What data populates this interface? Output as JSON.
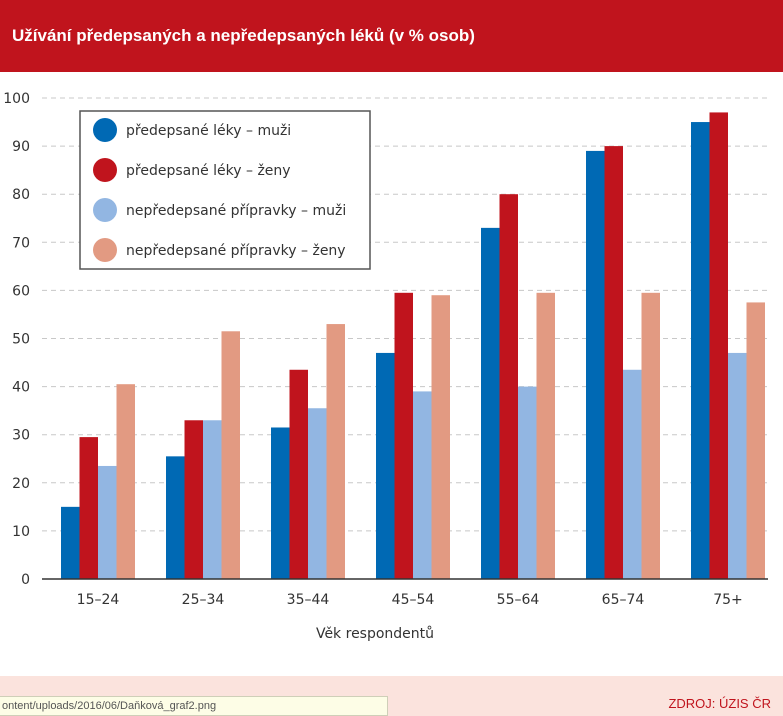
{
  "header": {
    "title": "Užívání předepsaných a nepředepsaných léků (v % osob)"
  },
  "footer": {
    "source": "ZDROJ: ÚZIS ČR"
  },
  "statusbar": {
    "url": "ontent/uploads/2016/06/Daňková_graf2.png"
  },
  "chart_data": {
    "type": "bar",
    "categories": [
      "15–24",
      "25–34",
      "35–44",
      "45–54",
      "55–64",
      "65–74",
      "75+"
    ],
    "series": [
      {
        "name": "předepsané léky – muži",
        "color": "#0069b4",
        "values": [
          15,
          25.5,
          31.5,
          47,
          73,
          89,
          95
        ]
      },
      {
        "name": "předepsané léky – ženy",
        "color": "#c0141d",
        "values": [
          29.5,
          33,
          43.5,
          59.5,
          80,
          90,
          97
        ]
      },
      {
        "name": "nepředepsané přípravky – muži",
        "color": "#92b6e2",
        "values": [
          23.5,
          33,
          35.5,
          39,
          40,
          43.5,
          47
        ]
      },
      {
        "name": "nepředepsané přípravky – ženy",
        "color": "#e29a82",
        "values": [
          40.5,
          51.5,
          53,
          59,
          59.5,
          59.5,
          57.5
        ]
      }
    ],
    "yticks": [
      "0",
      "10",
      "20",
      "30",
      "40",
      "50",
      "60",
      "70",
      "80",
      "90",
      "100"
    ],
    "xlabel": "Věk respondentů",
    "ylabel": "",
    "ylim": [
      0,
      100
    ],
    "grid": true,
    "legend_position": "top-left"
  }
}
